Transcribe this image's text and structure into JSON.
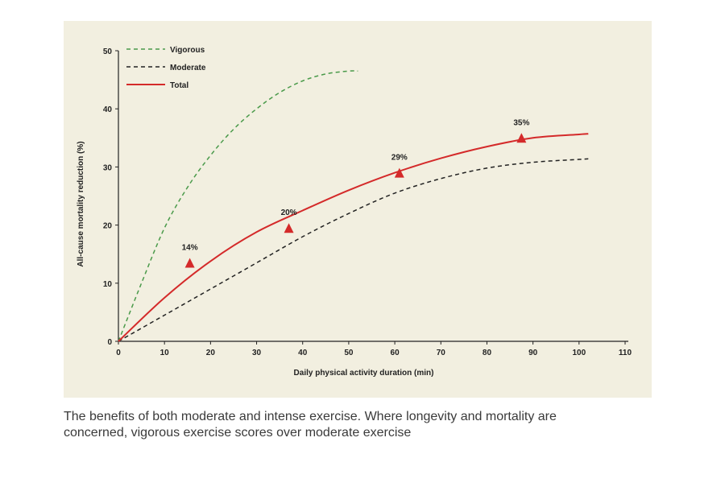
{
  "caption": "The benefits of both moderate and intense exercise. Where longevity and mortality are concerned, vigorous exercise scores over moderate exercise",
  "chart_data": {
    "type": "line",
    "title": "",
    "xlabel": "Daily physical activity duration (min)",
    "ylabel": "All-cause mortality reduction (%)",
    "xlim": [
      0,
      110
    ],
    "ylim": [
      0,
      50
    ],
    "xticks": [
      0,
      10,
      20,
      30,
      40,
      50,
      60,
      70,
      80,
      90,
      100,
      110
    ],
    "yticks": [
      0,
      10,
      20,
      30,
      40,
      50
    ],
    "grid": false,
    "legend_position": "top-left",
    "background": "#f2efe0",
    "series": [
      {
        "name": "Vigorous",
        "style": "dashed",
        "color": "#4a9a4a",
        "points": [
          [
            0,
            0
          ],
          [
            5,
            10
          ],
          [
            10,
            19.5
          ],
          [
            15,
            26.5
          ],
          [
            20,
            32
          ],
          [
            25,
            36.5
          ],
          [
            30,
            40
          ],
          [
            35,
            42.8
          ],
          [
            40,
            44.8
          ],
          [
            45,
            46
          ],
          [
            50,
            46.5
          ],
          [
            52,
            46.5
          ]
        ]
      },
      {
        "name": "Moderate",
        "style": "dashed",
        "color": "#222222",
        "points": [
          [
            0,
            0
          ],
          [
            10,
            4.5
          ],
          [
            20,
            9
          ],
          [
            30,
            13.5
          ],
          [
            40,
            18
          ],
          [
            50,
            22
          ],
          [
            60,
            25.5
          ],
          [
            70,
            28
          ],
          [
            80,
            29.8
          ],
          [
            90,
            30.8
          ],
          [
            100,
            31.3
          ],
          [
            102,
            31.4
          ]
        ]
      },
      {
        "name": "Total",
        "style": "solid",
        "color": "#d42a2a",
        "points": [
          [
            0,
            0
          ],
          [
            10,
            7.5
          ],
          [
            20,
            13.8
          ],
          [
            30,
            18.8
          ],
          [
            40,
            22.5
          ],
          [
            50,
            26
          ],
          [
            60,
            29
          ],
          [
            70,
            31.5
          ],
          [
            80,
            33.5
          ],
          [
            90,
            35
          ],
          [
            100,
            35.6
          ],
          [
            102,
            35.7
          ]
        ]
      }
    ],
    "markers": [
      {
        "x": 15.5,
        "y": 13.5,
        "label": "14%"
      },
      {
        "x": 37,
        "y": 19.5,
        "label": "20%"
      },
      {
        "x": 61,
        "y": 29,
        "label": "29%"
      },
      {
        "x": 87.5,
        "y": 35,
        "label": "35%"
      }
    ],
    "marker_color": "#d42a2a"
  }
}
